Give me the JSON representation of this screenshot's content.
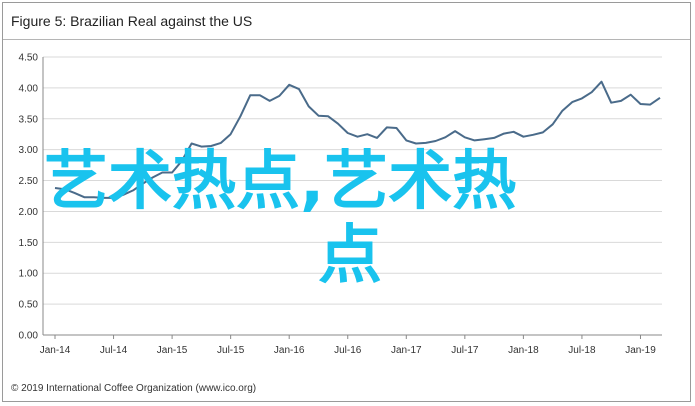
{
  "title": "Figure 5: Brazilian Real against the US",
  "footer": "© 2019 International Coffee Organization (www.ico.org)",
  "overlay": {
    "line1": "艺术热点,艺术热",
    "line2": "点",
    "color": "#19c3ee"
  },
  "chart_data": {
    "type": "line",
    "title": "Figure 5: Brazilian Real against the US",
    "xlabel": "",
    "ylabel": "",
    "ylim": [
      0,
      4.5
    ],
    "yticks": [
      "0.00",
      "0.50",
      "1.00",
      "1.50",
      "2.00",
      "2.50",
      "3.00",
      "3.50",
      "4.00",
      "4.50"
    ],
    "xticks": [
      "Jan-14",
      "Jul-14",
      "Jan-15",
      "Jul-15",
      "Jan-16",
      "Jul-16",
      "Jan-17",
      "Jul-17",
      "Jan-18",
      "Jul-18",
      "Jan-19"
    ],
    "grid": true,
    "line_color": "#4a6b8a",
    "series": [
      {
        "x": [
          "Jan-14",
          "Feb-14",
          "Mar-14",
          "Apr-14",
          "May-14",
          "Jun-14",
          "Jul-14",
          "Aug-14",
          "Sep-14",
          "Oct-14",
          "Nov-14",
          "Dec-14",
          "Jan-15",
          "Feb-15",
          "Mar-15",
          "Apr-15",
          "May-15",
          "Jun-15",
          "Jul-15",
          "Aug-15",
          "Sep-15",
          "Oct-15",
          "Nov-15",
          "Dec-15",
          "Jan-16",
          "Feb-16",
          "Mar-16",
          "Apr-16",
          "May-16",
          "Jun-16",
          "Jul-16",
          "Aug-16",
          "Sep-16",
          "Oct-16",
          "Nov-16",
          "Dec-16",
          "Jan-17",
          "Feb-17",
          "Mar-17",
          "Apr-17",
          "May-17",
          "Jun-17",
          "Jul-17",
          "Aug-17",
          "Sep-17",
          "Oct-17",
          "Nov-17",
          "Dec-17",
          "Jan-18",
          "Feb-18",
          "Mar-18",
          "Apr-18",
          "May-18",
          "Jun-18",
          "Jul-18",
          "Aug-18",
          "Sep-18",
          "Oct-18",
          "Nov-18",
          "Dec-18",
          "Jan-19",
          "Feb-19",
          "Mar-19"
        ],
        "values": [
          2.38,
          2.36,
          2.3,
          2.23,
          2.23,
          2.22,
          2.22,
          2.27,
          2.34,
          2.45,
          2.55,
          2.63,
          2.63,
          2.82,
          3.1,
          3.05,
          3.06,
          3.11,
          3.25,
          3.54,
          3.88,
          3.88,
          3.79,
          3.87,
          4.05,
          3.98,
          3.7,
          3.55,
          3.54,
          3.42,
          3.27,
          3.21,
          3.25,
          3.19,
          3.36,
          3.35,
          3.15,
          3.1,
          3.11,
          3.14,
          3.2,
          3.3,
          3.2,
          3.15,
          3.17,
          3.19,
          3.26,
          3.29,
          3.21,
          3.24,
          3.28,
          3.41,
          3.63,
          3.77,
          3.83,
          3.93,
          4.1,
          3.76,
          3.79,
          3.89,
          3.74,
          3.73,
          3.84
        ]
      }
    ]
  }
}
